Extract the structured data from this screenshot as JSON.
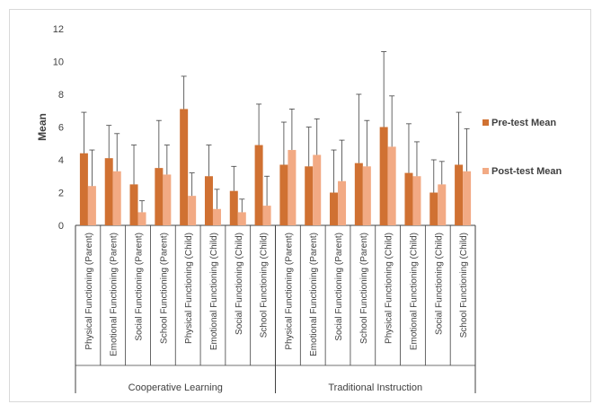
{
  "chart_data": {
    "type": "bar",
    "ylabel": "Mean",
    "ylim": [
      0,
      12
    ],
    "yticks": [
      0,
      2,
      4,
      6,
      8,
      10,
      12
    ],
    "legend_position": "right",
    "groups": [
      {
        "label": "Cooperative Learning",
        "count": 8
      },
      {
        "label": "Traditional Instruction",
        "count": 8
      }
    ],
    "categories": [
      "Physical Functioning (Parent)",
      "Emotional Functioning (Parent)",
      "Social Functioning (Parent)",
      "School Functioning (Parent)",
      "Physical Functioning (Child)",
      "Emotional Functioning (Child)",
      "Social Functioning (Child)",
      "School Functioning (Child)",
      "Physical Functioning (Parent)",
      "Emotional Functioning (Parent)",
      "Social Functioning (Parent)",
      "School Functioning (Parent)",
      "Physical Functioning (Child)",
      "Emotional Functioning (Child)",
      "Social Functioning (Child)",
      "School Functioning (Child)"
    ],
    "series": [
      {
        "name": "Pre-test Mean",
        "color": "#d07132",
        "values": [
          4.4,
          4.1,
          2.5,
          3.5,
          7.1,
          3.0,
          2.1,
          4.9,
          3.7,
          3.6,
          2.0,
          3.8,
          6.0,
          3.2,
          2.0,
          3.7
        ],
        "errors": [
          2.5,
          2.0,
          2.4,
          2.9,
          2.0,
          1.9,
          1.5,
          2.5,
          2.6,
          2.4,
          2.6,
          4.2,
          4.6,
          3.0,
          2.0,
          3.2
        ]
      },
      {
        "name": "Post-test Mean",
        "color": "#f2aa84",
        "values": [
          2.4,
          3.3,
          0.8,
          3.1,
          1.8,
          1.0,
          0.8,
          1.2,
          4.6,
          4.3,
          2.7,
          3.6,
          4.8,
          3.0,
          2.5,
          3.3
        ],
        "errors": [
          2.2,
          2.3,
          0.7,
          1.8,
          1.4,
          1.2,
          0.8,
          1.8,
          2.5,
          2.2,
          2.5,
          2.8,
          3.1,
          2.1,
          1.4,
          2.6
        ]
      }
    ]
  }
}
